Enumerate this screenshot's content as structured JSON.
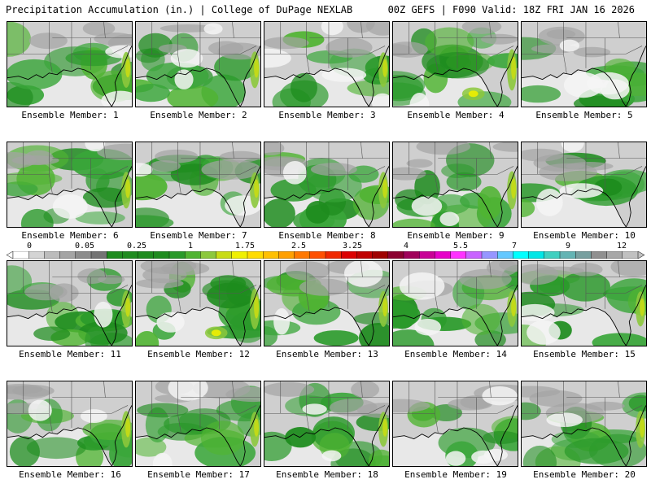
{
  "header": {
    "left_title": "Precipitation Accumulation (in.) | College of DuPage NEXLAB",
    "right_title": "00Z GEFS | F090 Valid: 18Z FRI JAN 16 2026"
  },
  "scale": {
    "labels": [
      "0",
      "0.05",
      "0.25",
      "1",
      "1.75",
      "2.5",
      "3.25",
      "4",
      "5.5",
      "7",
      "9",
      "12"
    ],
    "colors": [
      "#ffffff",
      "#d4d4d4",
      "#bcbcbc",
      "#a4a4a4",
      "#8c8c8c",
      "#747474",
      "#1e8c1e",
      "#1e8c1e",
      "#1e8c1e",
      "#1e8c1e",
      "#2a9a2a",
      "#50b432",
      "#8cc83c",
      "#c8dc14",
      "#f0f000",
      "#ffdc00",
      "#ffc000",
      "#ffa000",
      "#ff7800",
      "#ff5000",
      "#f02800",
      "#dc0000",
      "#c00000",
      "#a00000",
      "#8c0030",
      "#a0005a",
      "#c80096",
      "#e600c8",
      "#ff32ff",
      "#c864ff",
      "#9696ff",
      "#64c8ff",
      "#00ffff",
      "#00e6e6",
      "#40d0c0",
      "#64b4b4",
      "#78a0a0",
      "#909090",
      "#a8a8a8",
      "#c0c0c0"
    ]
  },
  "members": [
    {
      "label": "Ensemble Member: 1",
      "wet": 0.55,
      "hot": 0.45
    },
    {
      "label": "Ensemble Member: 2",
      "wet": 0.5,
      "hot": 0.5
    },
    {
      "label": "Ensemble Member: 3",
      "wet": 0.3,
      "hot": 0.4
    },
    {
      "label": "Ensemble Member: 4",
      "wet": 0.75,
      "hot": 0.8
    },
    {
      "label": "Ensemble Member: 5",
      "wet": 0.25,
      "hot": 0.25
    },
    {
      "label": "Ensemble Member: 6",
      "wet": 0.6,
      "hot": 0.5
    },
    {
      "label": "Ensemble Member: 7",
      "wet": 0.6,
      "hot": 0.45
    },
    {
      "label": "Ensemble Member: 8",
      "wet": 0.75,
      "hot": 0.5
    },
    {
      "label": "Ensemble Member: 9",
      "wet": 0.7,
      "hot": 0.6
    },
    {
      "label": "Ensemble Member: 10",
      "wet": 0.35,
      "hot": 0.35
    },
    {
      "label": "Ensemble Member: 11",
      "wet": 0.75,
      "hot": 0.5
    },
    {
      "label": "Ensemble Member: 12",
      "wet": 0.8,
      "hot": 0.75
    },
    {
      "label": "Ensemble Member: 13",
      "wet": 0.6,
      "hot": 0.45
    },
    {
      "label": "Ensemble Member: 14",
      "wet": 0.7,
      "hot": 0.45
    },
    {
      "label": "Ensemble Member: 15",
      "wet": 0.6,
      "hot": 0.4
    },
    {
      "label": "Ensemble Member: 16",
      "wet": 0.6,
      "hot": 0.5
    },
    {
      "label": "Ensemble Member: 17",
      "wet": 0.55,
      "hot": 0.4
    },
    {
      "label": "Ensemble Member: 18",
      "wet": 0.7,
      "hot": 0.4
    },
    {
      "label": "Ensemble Member: 19",
      "wet": 0.2,
      "hot": 0.2
    },
    {
      "label": "Ensemble Member: 20",
      "wet": 0.75,
      "hot": 0.55
    }
  ]
}
